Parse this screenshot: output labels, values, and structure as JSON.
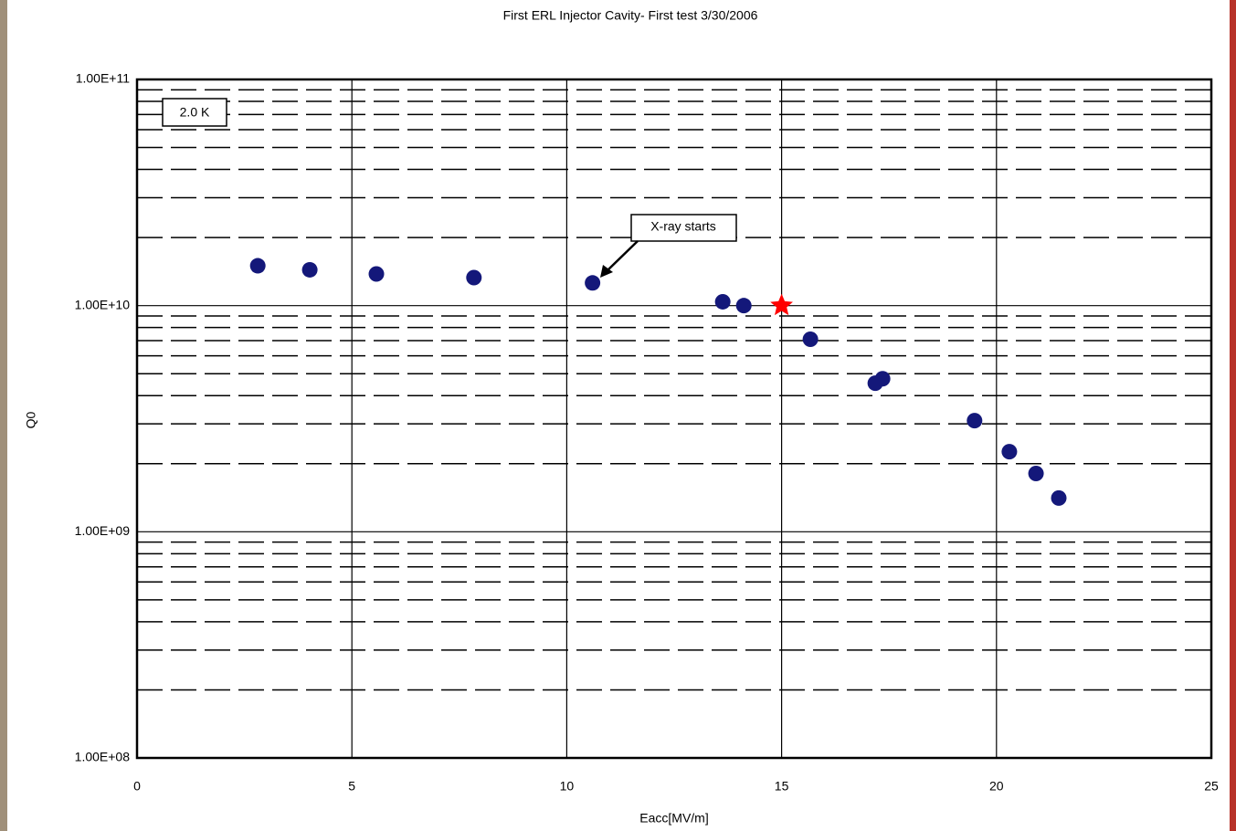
{
  "chart_data": {
    "type": "scatter",
    "title": "First ERL Injector Cavity- First test 3/30/2006",
    "xlabel": "Eacc[MV/m]",
    "ylabel": "Q0",
    "log_y": true,
    "grid": true,
    "xlim": [
      0,
      25
    ],
    "xticks": [
      0,
      5,
      10,
      15,
      20,
      25
    ],
    "ylim": [
      100000000,
      100000000000
    ],
    "yticks": [
      {
        "value": 100000000,
        "label": "1.00E+08"
      },
      {
        "value": 1000000000,
        "label": "1.00E+09"
      },
      {
        "value": 10000000000,
        "label": "1.00E+10"
      },
      {
        "value": 100000000000,
        "label": "1.00E+11"
      }
    ],
    "yminorticks": [
      200000000,
      300000000,
      400000000,
      500000000,
      600000000,
      700000000,
      800000000,
      900000000,
      2000000000,
      3000000000,
      4000000000,
      5000000000,
      6000000000,
      7000000000,
      8000000000,
      9000000000,
      20000000000,
      30000000000,
      40000000000,
      50000000000,
      60000000000,
      70000000000,
      80000000000,
      90000000000
    ],
    "series": [
      {
        "color": "#14187a",
        "marker": "circle",
        "x": [
          2.81,
          4.02,
          5.57,
          7.84,
          10.6,
          13.63,
          14.12,
          15.67,
          17.18,
          17.35,
          19.49,
          20.3,
          20.92,
          21.45
        ],
        "values": [
          15000000000,
          14400000000,
          13800000000,
          13300000000,
          12600000000,
          10400000000,
          10000000000,
          7100000000,
          4540000000,
          4750000000,
          3100000000,
          2260000000,
          1810000000,
          1410000000
        ]
      },
      {
        "color": "#ff0000",
        "marker": "star",
        "x": [
          15
        ],
        "values": [
          10000000000
        ]
      }
    ],
    "annotations": [
      {
        "text": "2.0 K"
      },
      {
        "text": "X-ray starts"
      }
    ]
  }
}
